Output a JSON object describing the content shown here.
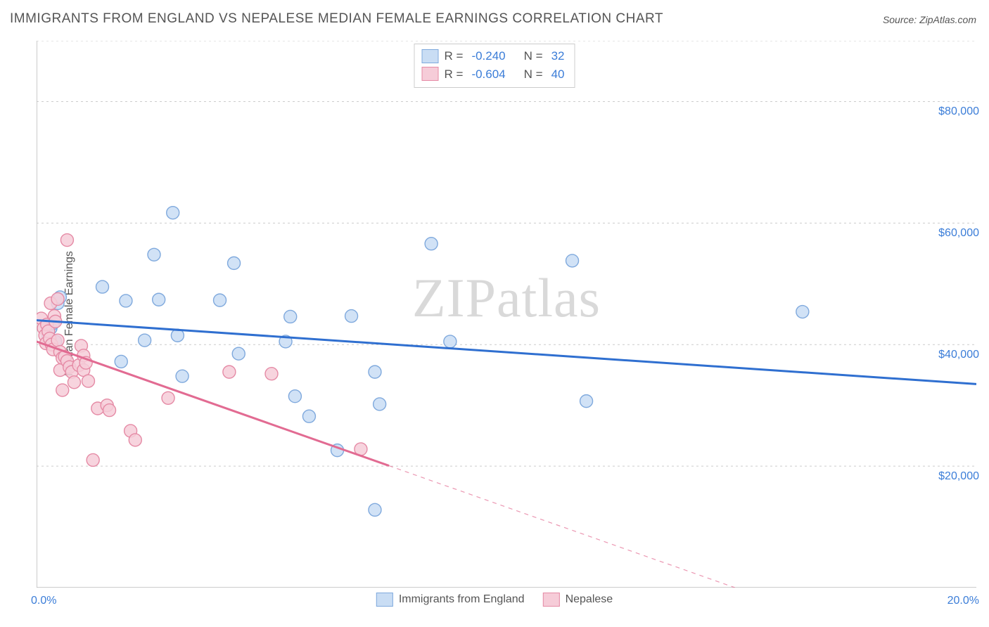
{
  "title": "IMMIGRANTS FROM ENGLAND VS NEPALESE MEDIAN FEMALE EARNINGS CORRELATION CHART",
  "source": "Source: ZipAtlas.com",
  "ylabel": "Median Female Earnings",
  "watermark": "ZIPatlas",
  "chart": {
    "type": "scatter+regression",
    "xlim": [
      0,
      20
    ],
    "ylim": [
      0,
      90000
    ],
    "x_unit": "%",
    "y_unit": "$",
    "x_tick_step": 2.5,
    "y_gridlines": [
      20000,
      40000,
      60000,
      80000
    ],
    "y_tick_labels": [
      "$20,000",
      "$40,000",
      "$60,000",
      "$80,000"
    ],
    "x_label_min": "0.0%",
    "x_label_max": "20.0%",
    "background_color": "#ffffff",
    "grid_color": "#cccccc",
    "axis_color": "#bbbbbb",
    "tick_label_color": "#3b7dd8",
    "marker_radius": 9,
    "marker_stroke_width": 1.4,
    "line_width": 3,
    "series": [
      {
        "key": "england",
        "label": "Immigrants from England",
        "fill": "#c9ddf4",
        "stroke": "#7fa9dd",
        "line_color": "#2f6fd0",
        "R": "-0.240",
        "N": "32",
        "regression": {
          "x1": 0,
          "y1": 44000,
          "x2": 20,
          "y2": 33500,
          "solid_until_x": 20
        },
        "points": [
          {
            "x": 0.25,
            "y": 41500
          },
          {
            "x": 0.3,
            "y": 42700
          },
          {
            "x": 0.35,
            "y": 43500
          },
          {
            "x": 0.4,
            "y": 40500
          },
          {
            "x": 0.45,
            "y": 46800
          },
          {
            "x": 0.5,
            "y": 47800
          },
          {
            "x": 1.4,
            "y": 49500
          },
          {
            "x": 1.8,
            "y": 37200
          },
          {
            "x": 1.9,
            "y": 47200
          },
          {
            "x": 2.3,
            "y": 40700
          },
          {
            "x": 2.5,
            "y": 54800
          },
          {
            "x": 2.6,
            "y": 47400
          },
          {
            "x": 2.9,
            "y": 61700
          },
          {
            "x": 3.0,
            "y": 41500
          },
          {
            "x": 3.1,
            "y": 34800
          },
          {
            "x": 3.9,
            "y": 47300
          },
          {
            "x": 4.2,
            "y": 53400
          },
          {
            "x": 4.3,
            "y": 38500
          },
          {
            "x": 5.3,
            "y": 40500
          },
          {
            "x": 5.4,
            "y": 44600
          },
          {
            "x": 5.5,
            "y": 31500
          },
          {
            "x": 5.8,
            "y": 28200
          },
          {
            "x": 6.4,
            "y": 22600
          },
          {
            "x": 6.7,
            "y": 44700
          },
          {
            "x": 7.2,
            "y": 35500
          },
          {
            "x": 7.2,
            "y": 12800
          },
          {
            "x": 7.3,
            "y": 30200
          },
          {
            "x": 8.4,
            "y": 56600
          },
          {
            "x": 8.8,
            "y": 40500
          },
          {
            "x": 11.4,
            "y": 53800
          },
          {
            "x": 11.7,
            "y": 30700
          },
          {
            "x": 16.3,
            "y": 45400
          }
        ]
      },
      {
        "key": "nepalese",
        "label": "Nepalese",
        "fill": "#f6ccd8",
        "stroke": "#e58aa5",
        "line_color": "#e26b92",
        "R": "-0.604",
        "N": "40",
        "regression": {
          "x1": 0,
          "y1": 40500,
          "x2": 20,
          "y2": -14000,
          "solid_until_x": 7.5
        },
        "points": [
          {
            "x": 0.1,
            "y": 44300
          },
          {
            "x": 0.15,
            "y": 42700
          },
          {
            "x": 0.18,
            "y": 41500
          },
          {
            "x": 0.2,
            "y": 40200
          },
          {
            "x": 0.22,
            "y": 43300
          },
          {
            "x": 0.25,
            "y": 42200
          },
          {
            "x": 0.28,
            "y": 41000
          },
          {
            "x": 0.3,
            "y": 46800
          },
          {
            "x": 0.32,
            "y": 40000
          },
          {
            "x": 0.35,
            "y": 39200
          },
          {
            "x": 0.38,
            "y": 44700
          },
          {
            "x": 0.4,
            "y": 43800
          },
          {
            "x": 0.45,
            "y": 40700
          },
          {
            "x": 0.45,
            "y": 47500
          },
          {
            "x": 0.5,
            "y": 38800
          },
          {
            "x": 0.5,
            "y": 35800
          },
          {
            "x": 0.55,
            "y": 37800
          },
          {
            "x": 0.55,
            "y": 32500
          },
          {
            "x": 0.6,
            "y": 38000
          },
          {
            "x": 0.65,
            "y": 57200
          },
          {
            "x": 0.65,
            "y": 37300
          },
          {
            "x": 0.7,
            "y": 36300
          },
          {
            "x": 0.75,
            "y": 35500
          },
          {
            "x": 0.8,
            "y": 33800
          },
          {
            "x": 0.9,
            "y": 36600
          },
          {
            "x": 0.95,
            "y": 39800
          },
          {
            "x": 1.0,
            "y": 35800
          },
          {
            "x": 1.0,
            "y": 38200
          },
          {
            "x": 1.05,
            "y": 37000
          },
          {
            "x": 1.1,
            "y": 34000
          },
          {
            "x": 1.2,
            "y": 21000
          },
          {
            "x": 1.3,
            "y": 29500
          },
          {
            "x": 1.5,
            "y": 30000
          },
          {
            "x": 1.55,
            "y": 29200
          },
          {
            "x": 2.0,
            "y": 25800
          },
          {
            "x": 2.1,
            "y": 24300
          },
          {
            "x": 2.8,
            "y": 31200
          },
          {
            "x": 4.1,
            "y": 35500
          },
          {
            "x": 5.0,
            "y": 35200
          },
          {
            "x": 6.9,
            "y": 22800
          }
        ]
      }
    ]
  },
  "stats_legend": {
    "r_label": "R =",
    "n_label": "N ="
  }
}
